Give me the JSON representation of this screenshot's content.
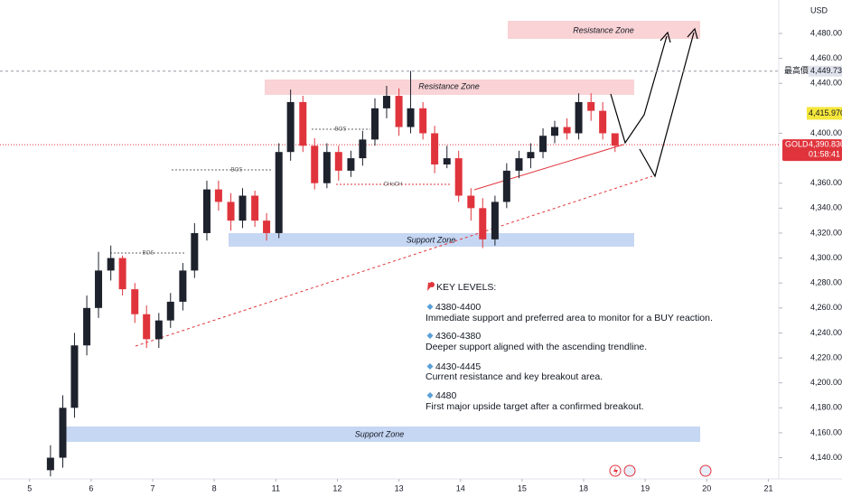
{
  "chart_data": {
    "type": "candlestick",
    "currency": "USD",
    "up_color": "#1e222d",
    "down_color": "#e0343c",
    "x": [
      0.34,
      0.54,
      0.73,
      0.93,
      1.12,
      1.32,
      1.51,
      1.71,
      1.9,
      2.1,
      2.29,
      2.49,
      2.68,
      2.88,
      3.07,
      3.27,
      3.46,
      3.66,
      3.85,
      4.05,
      4.24,
      4.44,
      4.63,
      4.83,
      5.02,
      5.22,
      5.41,
      5.61,
      5.8,
      6.0,
      6.19,
      6.39,
      6.58,
      6.78,
      6.97,
      7.17,
      7.36,
      7.56,
      7.75,
      7.95,
      8.14,
      8.34,
      8.53,
      8.73,
      8.92,
      9.12,
      9.31,
      9.51
    ],
    "open": [
      4130,
      4140,
      4180,
      4230,
      4260,
      4290,
      4300,
      4275,
      4255,
      4235,
      4250,
      4265,
      4290,
      4320,
      4355,
      4345,
      4330,
      4350,
      4330,
      4320,
      4385,
      4425,
      4390,
      4360,
      4385,
      4370,
      4380,
      4395,
      4420,
      4430,
      4405,
      4420,
      4400,
      4375,
      4380,
      4350,
      4340,
      4315,
      4345,
      4370,
      4380,
      4385,
      4398,
      4405,
      4400,
      4425,
      4418,
      4400
    ],
    "high": [
      4150,
      4190,
      4240,
      4270,
      4305,
      4310,
      4302,
      4280,
      4262,
      4256,
      4272,
      4296,
      4328,
      4362,
      4362,
      4352,
      4356,
      4354,
      4336,
      4392,
      4435,
      4430,
      4396,
      4392,
      4390,
      4386,
      4402,
      4428,
      4438,
      4436,
      4450,
      4425,
      4406,
      4390,
      4386,
      4356,
      4348,
      4350,
      4376,
      4386,
      4392,
      4404,
      4410,
      4412,
      4432,
      4432,
      4425,
      4400
    ],
    "low": [
      4125,
      4132,
      4172,
      4222,
      4252,
      4282,
      4270,
      4248,
      4228,
      4228,
      4244,
      4258,
      4284,
      4314,
      4338,
      4322,
      4324,
      4325,
      4314,
      4316,
      4378,
      4385,
      4355,
      4356,
      4362,
      4365,
      4374,
      4390,
      4412,
      4398,
      4400,
      4395,
      4368,
      4372,
      4345,
      4330,
      4308,
      4310,
      4340,
      4364,
      4372,
      4380,
      4392,
      4395,
      4395,
      4410,
      4395,
      4385
    ],
    "close": [
      4140,
      4180,
      4230,
      4260,
      4290,
      4300,
      4275,
      4255,
      4235,
      4250,
      4265,
      4290,
      4320,
      4355,
      4345,
      4330,
      4350,
      4330,
      4320,
      4385,
      4425,
      4390,
      4360,
      4385,
      4370,
      4380,
      4395,
      4420,
      4430,
      4405,
      4420,
      4400,
      4375,
      4380,
      4350,
      4340,
      4315,
      4345,
      4370,
      4380,
      4385,
      4398,
      4405,
      4400,
      4425,
      4418,
      4400,
      4390
    ],
    "xlim": [
      -0.48,
      12.14
    ],
    "xticks": [
      {
        "value": 0,
        "label": "5"
      },
      {
        "value": 1,
        "label": "6"
      },
      {
        "value": 2,
        "label": "7"
      },
      {
        "value": 3,
        "label": "8"
      },
      {
        "value": 4,
        "label": "11"
      },
      {
        "value": 5,
        "label": "12"
      },
      {
        "value": 6,
        "label": "13"
      },
      {
        "value": 7,
        "label": "14"
      },
      {
        "value": 8,
        "label": "15"
      },
      {
        "value": 9,
        "label": "18"
      },
      {
        "value": 10,
        "label": "19"
      },
      {
        "value": 11,
        "label": "20"
      },
      {
        "value": 12,
        "label": "21"
      }
    ],
    "ylim": [
      4123.0,
      4506.8
    ],
    "yticks": [
      {
        "value": 4140,
        "label": "4,140.000"
      },
      {
        "value": 4160,
        "label": "4,160.000"
      },
      {
        "value": 4180,
        "label": "4,180.000"
      },
      {
        "value": 4200,
        "label": "4,200.000"
      },
      {
        "value": 4220,
        "label": "4,220.000"
      },
      {
        "value": 4240,
        "label": "4,240.000"
      },
      {
        "value": 4260,
        "label": "4,260.000"
      },
      {
        "value": 4280,
        "label": "4,280.000"
      },
      {
        "value": 4300,
        "label": "4,300.000"
      },
      {
        "value": 4320,
        "label": "4,320.000"
      },
      {
        "value": 4340,
        "label": "4,340.000"
      },
      {
        "value": 4360,
        "label": "4,360.000"
      },
      {
        "value": 4400,
        "label": "4,400.000"
      },
      {
        "value": 4440,
        "label": "4,440.000"
      },
      {
        "value": 4460,
        "label": "4,460.000"
      },
      {
        "value": 4480,
        "label": "4,480.000"
      }
    ],
    "grid": false,
    "high_marker": {
      "name": "最高價",
      "value": 4449.73,
      "label": "4,449.730"
    },
    "level_marker": {
      "value": 4415.97,
      "label": "4,415.970"
    },
    "last_price": {
      "symbol": "GOLD",
      "value": 4390.83,
      "label": "4,390.830",
      "countdown": "01:58:41"
    },
    "zones": [
      "Resistance Zone",
      "Resistance Zone",
      "Support Zone",
      "Support Zone"
    ],
    "structure_labels": [
      "BOS",
      "BOS",
      "BOS",
      "CHoCH"
    ],
    "key_levels": {
      "title": "KEY LEVELS:",
      "items": [
        {
          "level": "4380-4400",
          "text": "Immediate support and preferred area to monitor for a BUY reaction."
        },
        {
          "level": "4360-4380",
          "text": "Deeper support aligned with the ascending trendline."
        },
        {
          "level": "4430-4445",
          "text": "Current resistance and key breakout area."
        },
        {
          "level": "4480",
          "text": "First major upside target after a confirmed breakout."
        }
      ]
    }
  }
}
